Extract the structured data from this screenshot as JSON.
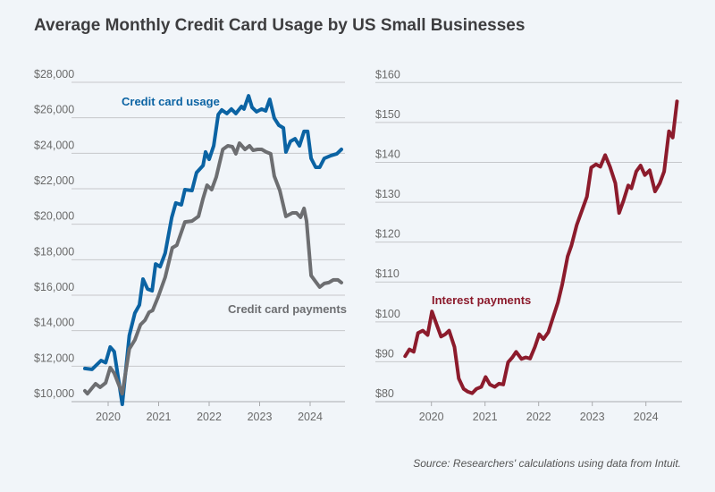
{
  "title": "Average Monthly Credit Card Usage by US Small Businesses",
  "source": "Source: Researchers' calculations using data from Intuit.",
  "chart_data": [
    {
      "type": "line",
      "title": "",
      "xlabel": "",
      "ylabel": "",
      "xlim": [
        2019.5,
        2024.65
      ],
      "ylim": [
        10000,
        28000
      ],
      "grid": true,
      "x_ticks": [
        2020,
        2021,
        2022,
        2023,
        2024
      ],
      "x_tick_labels": [
        "2020",
        "2021",
        "2022",
        "2023",
        "2024"
      ],
      "y_ticks": [
        10000,
        12000,
        14000,
        16000,
        18000,
        20000,
        22000,
        24000,
        26000,
        28000
      ],
      "y_tick_labels": [
        "$10,000",
        "$12,000",
        "$14,000",
        "$16,000",
        "$18,000",
        "$20,000",
        "$22,000",
        "$24,000",
        "$26,000",
        "$28,000"
      ],
      "series": [
        {
          "name": "Credit card usage",
          "color": "#0b63a3",
          "x": [
            2019.54,
            2019.68,
            2019.86,
            2019.95,
            2020.04,
            2020.12,
            2020.28,
            2020.42,
            2020.53,
            2020.62,
            2020.69,
            2020.78,
            2020.87,
            2020.94,
            2021.03,
            2021.13,
            2021.26,
            2021.34,
            2021.45,
            2021.52,
            2021.66,
            2021.75,
            2021.88,
            2021.93,
            2022.0,
            2022.09,
            2022.18,
            2022.25,
            2022.35,
            2022.44,
            2022.53,
            2022.64,
            2022.69,
            2022.78,
            2022.85,
            2022.94,
            2023.04,
            2023.12,
            2023.2,
            2023.29,
            2023.38,
            2023.47,
            2023.52,
            2023.61,
            2023.7,
            2023.79,
            2023.88,
            2023.95,
            2024.02,
            2024.11,
            2024.19,
            2024.28,
            2024.41,
            2024.53,
            2024.62
          ],
          "values": [
            11870,
            11820,
            12320,
            12200,
            13080,
            12820,
            9850,
            13730,
            14990,
            15450,
            16910,
            16350,
            16250,
            17760,
            17610,
            18370,
            20390,
            21200,
            21090,
            21950,
            21900,
            22910,
            23310,
            24070,
            23660,
            24420,
            26180,
            26440,
            26240,
            26490,
            26240,
            26640,
            26490,
            27240,
            26590,
            26340,
            26490,
            26390,
            27040,
            25980,
            25580,
            25430,
            24070,
            24670,
            24820,
            24420,
            25230,
            25230,
            23710,
            23210,
            23210,
            23710,
            23870,
            23970,
            24220
          ]
        },
        {
          "name": "Credit card payments",
          "color": "#6d6e71",
          "x": [
            2019.54,
            2019.59,
            2019.75,
            2019.84,
            2019.95,
            2020.04,
            2020.12,
            2020.28,
            2020.42,
            2020.53,
            2020.64,
            2020.73,
            2020.81,
            2020.88,
            2020.99,
            2021.13,
            2021.27,
            2021.36,
            2021.52,
            2021.66,
            2021.79,
            2021.88,
            2021.96,
            2022.05,
            2022.14,
            2022.27,
            2022.37,
            2022.46,
            2022.53,
            2022.6,
            2022.71,
            2022.8,
            2022.87,
            2022.96,
            2023.04,
            2023.13,
            2023.22,
            2023.29,
            2023.4,
            2023.52,
            2023.65,
            2023.73,
            2023.81,
            2023.88,
            2023.93,
            2024.02,
            2024.11,
            2024.19,
            2024.28,
            2024.37,
            2024.46,
            2024.55,
            2024.62
          ],
          "values": [
            10610,
            10450,
            11010,
            10810,
            11060,
            11920,
            11610,
            10450,
            12970,
            13480,
            14340,
            14590,
            15040,
            15140,
            15900,
            17010,
            18670,
            18820,
            20130,
            20180,
            20440,
            21450,
            22200,
            21950,
            22650,
            24220,
            24420,
            24370,
            23970,
            24570,
            24220,
            24420,
            24170,
            24220,
            24220,
            24070,
            23970,
            22710,
            21900,
            20440,
            20640,
            20640,
            20390,
            20890,
            20180,
            17110,
            16760,
            16460,
            16660,
            16710,
            16860,
            16860,
            16710
          ]
        }
      ]
    },
    {
      "type": "line",
      "title": "",
      "xlabel": "",
      "ylabel": "",
      "xlim": [
        2019.45,
        2024.65
      ],
      "ylim": [
        80,
        160
      ],
      "grid": true,
      "x_ticks": [
        2020,
        2021,
        2022,
        2023,
        2024
      ],
      "x_tick_labels": [
        "2020",
        "2021",
        "2022",
        "2023",
        "2024"
      ],
      "y_ticks": [
        80,
        90,
        100,
        110,
        120,
        130,
        140,
        150,
        160
      ],
      "y_tick_labels": [
        "$80",
        "$90",
        "$100",
        "$110",
        "$120",
        "$130",
        "$140",
        "$150",
        "$160"
      ],
      "series": [
        {
          "name": "Interest payments",
          "color": "#8c1b2c",
          "x": [
            2019.51,
            2019.59,
            2019.67,
            2019.75,
            2019.84,
            2019.93,
            2020.01,
            2020.09,
            2020.18,
            2020.26,
            2020.33,
            2020.43,
            2020.51,
            2020.6,
            2020.68,
            2020.76,
            2020.84,
            2020.93,
            2021.01,
            2021.09,
            2021.18,
            2021.26,
            2021.34,
            2021.43,
            2021.51,
            2021.58,
            2021.68,
            2021.76,
            2021.84,
            2021.93,
            2022.01,
            2022.09,
            2022.18,
            2022.26,
            2022.36,
            2022.44,
            2022.54,
            2022.61,
            2022.71,
            2022.82,
            2022.9,
            2022.98,
            2023.07,
            2023.15,
            2023.24,
            2023.33,
            2023.43,
            2023.5,
            2023.58,
            2023.67,
            2023.73,
            2023.82,
            2023.9,
            2023.98,
            2024.07,
            2024.17,
            2024.26,
            2024.34,
            2024.43,
            2024.5,
            2024.58
          ],
          "values": [
            91.4,
            93.1,
            92.5,
            97.2,
            97.8,
            96.7,
            102.6,
            99.6,
            96.3,
            96.9,
            97.8,
            93.7,
            85.8,
            83.2,
            82.5,
            82.1,
            83.2,
            83.7,
            86.2,
            84.3,
            83.7,
            84.5,
            84.3,
            89.9,
            91.1,
            92.5,
            90.7,
            91.1,
            90.8,
            93.7,
            96.9,
            95.7,
            97.4,
            100.8,
            104.9,
            109.4,
            116.4,
            119.1,
            124.3,
            128.4,
            131.4,
            138.7,
            139.5,
            138.9,
            141.8,
            138.9,
            134.8,
            127.3,
            130.3,
            134.2,
            133.5,
            137.7,
            139.2,
            136.8,
            138.0,
            132.7,
            134.8,
            137.7,
            147.8,
            146.2,
            155.3
          ]
        }
      ]
    }
  ]
}
